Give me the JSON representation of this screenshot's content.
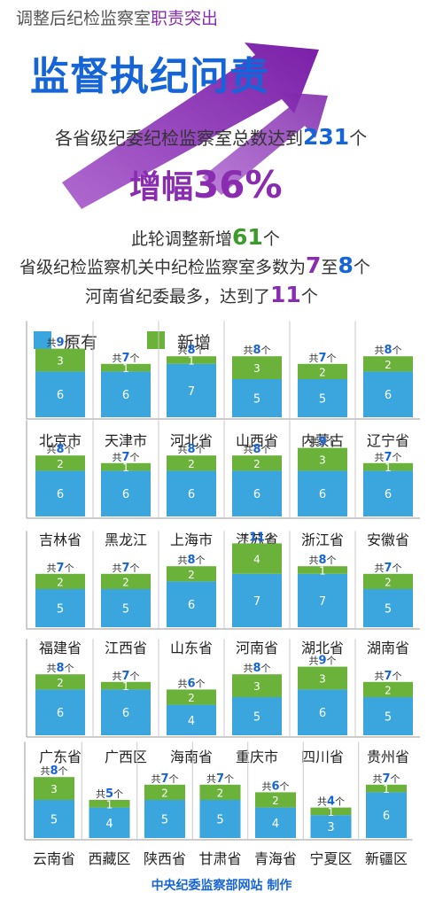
{
  "header": {
    "line1_prefix": "调整后纪检监察室",
    "line1_highlight": "职责突出",
    "headline": "监督执纪问责",
    "stat1_prefix": "各省级纪委纪检监察室总数达到",
    "stat1_value": "231",
    "stat1_suffix": "个",
    "growth_prefix": "增幅",
    "growth_value": "36%",
    "stat2_prefix": "此轮调整新增",
    "stat2_value": "61",
    "stat2_suffix": "个",
    "stat3_prefix": "省级纪检监察机关中纪检监察室多数为",
    "stat3_value_a": "7",
    "stat3_mid": "至",
    "stat3_value_b": "8",
    "stat3_suffix": "个",
    "stat4_prefix": "河南省纪委最多，达到了",
    "stat4_value": "11",
    "stat4_suffix": "个"
  },
  "legend": {
    "original": "原有",
    "added": "新增"
  },
  "colors": {
    "original": "#3aa6dd",
    "added": "#6ab23a",
    "accent_purple": "#8a2cb0",
    "accent_blue": "#1565d8"
  },
  "chart_data": {
    "type": "bar",
    "stacked": true,
    "categories": [
      "北京市",
      "天津市",
      "河北省",
      "山西省",
      "内蒙古",
      "辽宁省",
      "吉林省",
      "黑龙江",
      "上海市",
      "江苏省",
      "浙江省",
      "安徽省",
      "福建省",
      "江西省",
      "山东省",
      "河南省",
      "湖北省",
      "湖南省",
      "广东省",
      "广西区",
      "海南省",
      "重庆市",
      "四川省",
      "贵州省",
      "云南省",
      "西藏区",
      "陕西省",
      "甘肃省",
      "青海省",
      "宁夏区",
      "新疆区"
    ],
    "series": [
      {
        "name": "原有",
        "values": [
          6,
          6,
          7,
          5,
          5,
          6,
          6,
          6,
          6,
          6,
          6,
          6,
          5,
          5,
          6,
          7,
          7,
          5,
          6,
          6,
          4,
          5,
          6,
          5,
          5,
          4,
          5,
          5,
          4,
          3,
          6
        ]
      },
      {
        "name": "新增",
        "values": [
          3,
          1,
          1,
          3,
          2,
          2,
          2,
          1,
          2,
          2,
          3,
          1,
          2,
          2,
          2,
          4,
          1,
          2,
          2,
          1,
          2,
          3,
          3,
          2,
          3,
          1,
          2,
          2,
          2,
          1,
          1
        ]
      }
    ],
    "totals": [
      9,
      7,
      8,
      8,
      7,
      8,
      8,
      7,
      8,
      8,
      9,
      7,
      7,
      7,
      8,
      11,
      8,
      7,
      8,
      7,
      6,
      8,
      9,
      7,
      8,
      5,
      7,
      7,
      6,
      4,
      7
    ],
    "total_prefix": "共",
    "total_suffix": "个",
    "ylim": [
      0,
      11
    ],
    "grid": false,
    "legend_position": "top-left"
  },
  "credit": "中央纪委监察部网站 制作"
}
